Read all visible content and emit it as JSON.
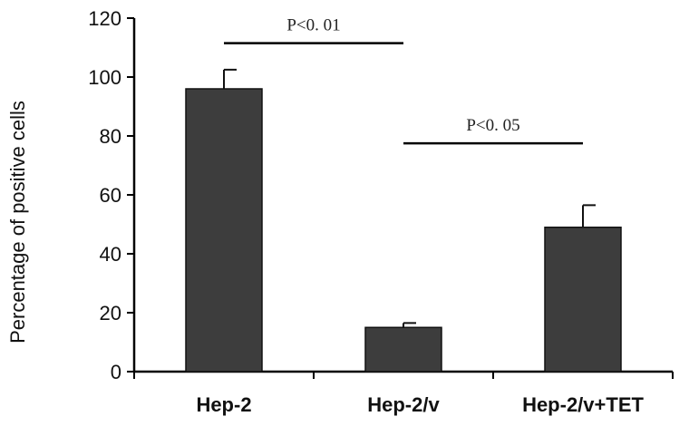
{
  "chart_data": {
    "type": "bar",
    "title": "",
    "xlabel": "",
    "ylabel": "Percentage of positive cells",
    "categories": [
      "Hep-2",
      "Hep-2/v",
      "Hep-2/v+TET"
    ],
    "values": [
      96,
      15,
      49
    ],
    "error_bars": [
      6.5,
      1.5,
      7.5
    ],
    "ylim": [
      0,
      120
    ],
    "yticks": [
      0,
      20,
      40,
      60,
      80,
      100,
      120
    ],
    "grid": false,
    "legend": "none",
    "bar_color": "#3d3d3d",
    "annotations": [
      {
        "text": "P<0. 01",
        "from": "Hep-2",
        "to": "Hep-2/v",
        "y": 111.5
      },
      {
        "text": "P<0. 05",
        "from": "Hep-2/v",
        "to": "Hep-2/v+TET",
        "y": 77.5
      }
    ]
  }
}
